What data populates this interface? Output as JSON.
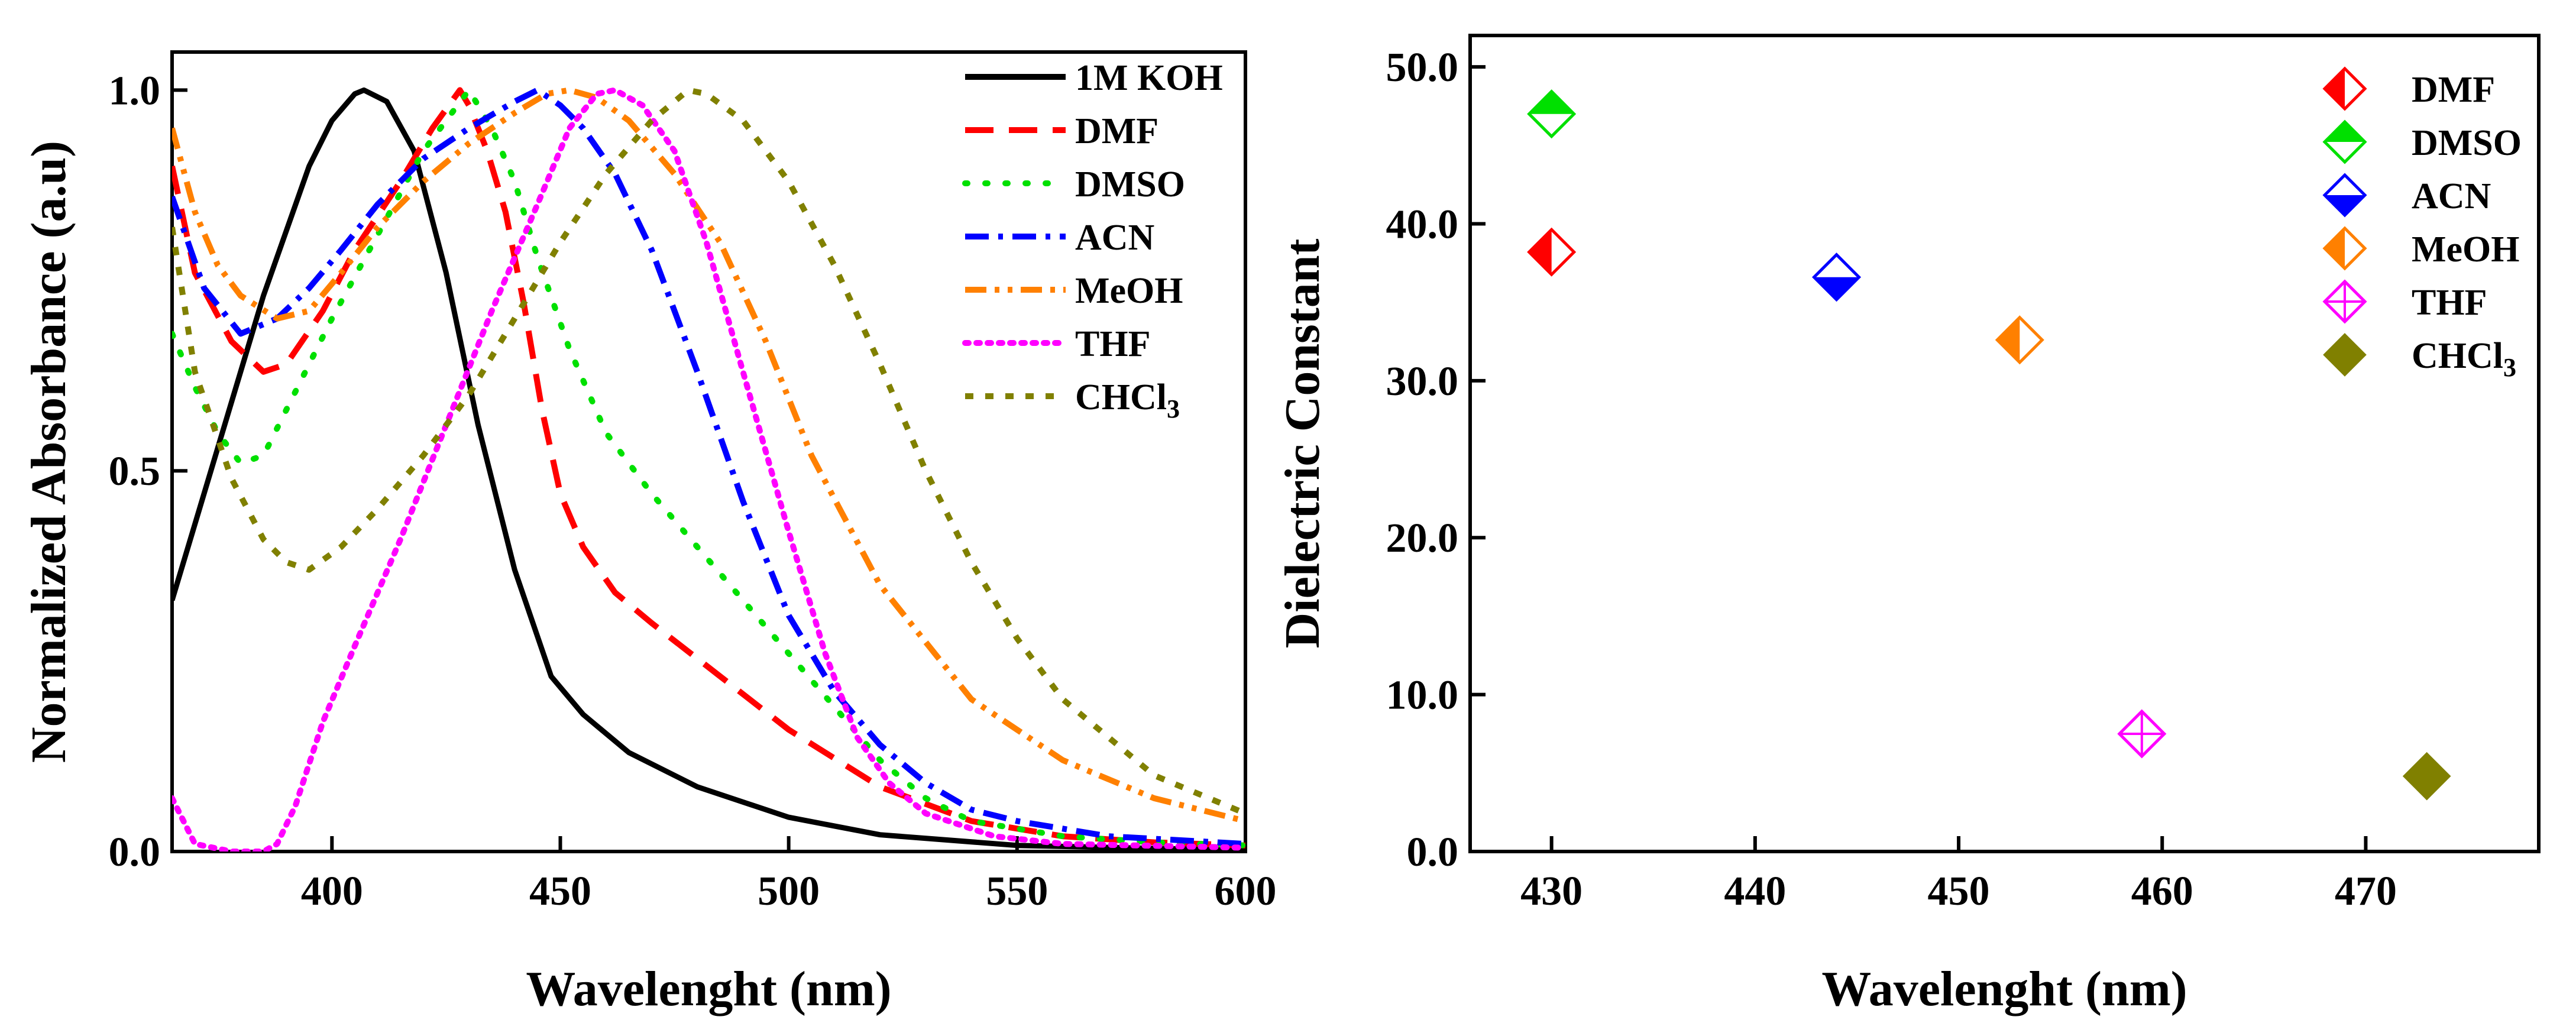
{
  "chart_data": [
    {
      "type": "line",
      "xlabel": "Wavelenght (nm)",
      "ylabel": "Normalized Absorbance (a.u)",
      "xlim": [
        365,
        600
      ],
      "ylim": [
        0,
        1.05
      ],
      "xticks": [
        400,
        450,
        500,
        550,
        600
      ],
      "yticks": [
        0.0,
        0.5,
        1.0
      ],
      "ytick_labels": [
        "0.0",
        "0.5",
        "1.0"
      ],
      "grid": false,
      "legend_position": "top-right",
      "series": [
        {
          "name": "1M KOH",
          "color": "#000000",
          "dash": "solid",
          "x": [
            365,
            375,
            385,
            395,
            400,
            405,
            407,
            412,
            418,
            425,
            432,
            440,
            448,
            455,
            465,
            480,
            500,
            520,
            550,
            580,
            600
          ],
          "y": [
            0.33,
            0.53,
            0.73,
            0.9,
            0.96,
            0.995,
            1.0,
            0.985,
            0.92,
            0.76,
            0.56,
            0.37,
            0.23,
            0.18,
            0.13,
            0.085,
            0.045,
            0.022,
            0.008,
            0.004,
            0.002
          ]
        },
        {
          "name": "DMF",
          "color": "#ff0000",
          "dash": "long-dash",
          "x": [
            365,
            370,
            378,
            385,
            390,
            398,
            405,
            415,
            422,
            428,
            430,
            434,
            438,
            442,
            446,
            450,
            455,
            462,
            470,
            485,
            500,
            520,
            540,
            560,
            580,
            600
          ],
          "y": [
            0.9,
            0.76,
            0.67,
            0.63,
            0.64,
            0.71,
            0.79,
            0.88,
            0.95,
            1.0,
            0.98,
            0.92,
            0.84,
            0.72,
            0.58,
            0.47,
            0.4,
            0.34,
            0.3,
            0.23,
            0.16,
            0.085,
            0.04,
            0.02,
            0.012,
            0.008
          ]
        },
        {
          "name": "DMSO",
          "color": "#00e000",
          "dash": "dotted",
          "x": [
            365,
            370,
            375,
            380,
            385,
            390,
            400,
            410,
            420,
            430,
            435,
            440,
            445,
            452,
            460,
            470,
            480,
            490,
            500,
            510,
            520,
            530,
            540,
            560,
            580,
            600
          ],
          "y": [
            0.68,
            0.61,
            0.55,
            0.51,
            0.52,
            0.58,
            0.7,
            0.81,
            0.92,
            1.0,
            0.95,
            0.88,
            0.78,
            0.66,
            0.55,
            0.47,
            0.4,
            0.33,
            0.26,
            0.19,
            0.12,
            0.07,
            0.04,
            0.02,
            0.012,
            0.008
          ]
        },
        {
          "name": "ACN",
          "color": "#0000ff",
          "dash": "dash-dot",
          "x": [
            365,
            372,
            380,
            388,
            395,
            402,
            410,
            420,
            430,
            440,
            445,
            450,
            455,
            462,
            470,
            480,
            490,
            500,
            510,
            520,
            530,
            540,
            550,
            570,
            600
          ],
          "y": [
            0.86,
            0.74,
            0.68,
            0.7,
            0.74,
            0.79,
            0.85,
            0.91,
            0.95,
            0.985,
            1.0,
            0.98,
            0.95,
            0.89,
            0.79,
            0.63,
            0.46,
            0.31,
            0.21,
            0.14,
            0.09,
            0.055,
            0.04,
            0.02,
            0.01
          ]
        },
        {
          "name": "MeOH",
          "color": "#ff8000",
          "dash": "dash-dot-dot",
          "x": [
            365,
            370,
            375,
            380,
            388,
            395,
            402,
            410,
            420,
            430,
            440,
            447,
            452,
            458,
            465,
            475,
            485,
            495,
            505,
            520,
            540,
            560,
            580,
            600
          ],
          "y": [
            0.95,
            0.84,
            0.77,
            0.73,
            0.7,
            0.71,
            0.76,
            0.82,
            0.88,
            0.93,
            0.97,
            0.995,
            1.0,
            0.99,
            0.96,
            0.89,
            0.8,
            0.67,
            0.52,
            0.35,
            0.2,
            0.12,
            0.07,
            0.04
          ]
        },
        {
          "name": "THF",
          "color": "#ff00ff",
          "dash": "short-dot",
          "x": [
            365,
            370,
            378,
            385,
            388,
            392,
            398,
            405,
            415,
            425,
            435,
            445,
            452,
            458,
            462,
            468,
            475,
            482,
            490,
            500,
            508,
            515,
            522,
            530,
            545,
            560,
            600
          ],
          "y": [
            0.07,
            0.01,
            0.0,
            0.0,
            0.01,
            0.06,
            0.17,
            0.27,
            0.41,
            0.56,
            0.71,
            0.85,
            0.95,
            0.995,
            1.0,
            0.98,
            0.92,
            0.8,
            0.63,
            0.42,
            0.26,
            0.15,
            0.09,
            0.05,
            0.02,
            0.01,
            0.005
          ]
        },
        {
          "name": "CHCl3",
          "name_main": "CHCl",
          "name_sub": "3",
          "color": "#808000",
          "dash": "short-dash",
          "x": [
            365,
            370,
            378,
            385,
            390,
            395,
            402,
            410,
            420,
            430,
            440,
            450,
            460,
            470,
            478,
            482,
            490,
            500,
            510,
            520,
            530,
            540,
            550,
            560,
            580,
            600
          ],
          "y": [
            0.82,
            0.63,
            0.49,
            0.41,
            0.38,
            0.37,
            0.4,
            0.45,
            0.52,
            0.6,
            0.7,
            0.8,
            0.89,
            0.96,
            1.0,
            0.995,
            0.96,
            0.88,
            0.77,
            0.64,
            0.5,
            0.38,
            0.28,
            0.2,
            0.1,
            0.05
          ]
        }
      ]
    },
    {
      "type": "scatter",
      "xlabel": "Wavelenght (nm)",
      "ylabel": "Dielectric Constant",
      "xlim": [
        426,
        478.5
      ],
      "ylim": [
        0,
        52
      ],
      "xticks": [
        430,
        440,
        450,
        460,
        470
      ],
      "yticks": [
        0,
        10,
        20,
        30,
        40,
        50
      ],
      "ytick_labels": [
        "0.0",
        "10.0",
        "20.0",
        "30.0",
        "40.0",
        "50.0"
      ],
      "grid": false,
      "legend_position": "top-right",
      "series": [
        {
          "name": "DMF",
          "color": "#ff0000",
          "marker": "diamond-half-left",
          "x": [
            430
          ],
          "y": [
            38.2
          ]
        },
        {
          "name": "DMSO",
          "color": "#00e000",
          "marker": "diamond-half-top",
          "x": [
            430
          ],
          "y": [
            47.0
          ]
        },
        {
          "name": "ACN",
          "color": "#0000ff",
          "marker": "diamond-half-bottom",
          "x": [
            444
          ],
          "y": [
            36.6
          ]
        },
        {
          "name": "MeOH",
          "color": "#ff8000",
          "marker": "diamond-half-left",
          "x": [
            453
          ],
          "y": [
            32.6
          ]
        },
        {
          "name": "THF",
          "color": "#ff00ff",
          "marker": "diamond-cross",
          "x": [
            459
          ],
          "y": [
            7.5
          ]
        },
        {
          "name": "CHCl3",
          "name_main": "CHCl",
          "name_sub": "3",
          "color": "#808000",
          "marker": "diamond-filled",
          "x": [
            473
          ],
          "y": [
            4.8
          ]
        }
      ]
    }
  ]
}
